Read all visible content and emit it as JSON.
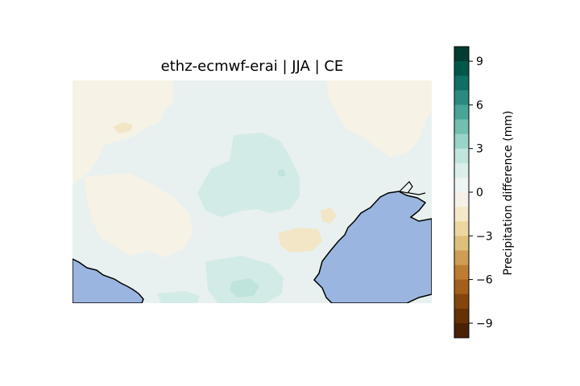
{
  "title": "ethz-ecmwf-erai | JJA | CE",
  "colorbar": {
    "label": "Precipitation difference (mm)",
    "min": -10,
    "max": 10,
    "levels": 20,
    "ticks": [
      9,
      6,
      3,
      0,
      -3,
      -6,
      -9
    ],
    "tick_labels": [
      "9",
      "6",
      "3",
      "0",
      "−3",
      "−6",
      "−9"
    ],
    "colormap": "BrBG",
    "colors_top_to_bottom": [
      "#003c30",
      "#01574a",
      "#0f6f64",
      "#2b8a80",
      "#4aa598",
      "#72bfb0",
      "#98d4c7",
      "#bfe5dc",
      "#dbeee9",
      "#eef4f3",
      "#f5f1e8",
      "#f4e8c8",
      "#ecd7a2",
      "#dfbf7c",
      "#cf9d55",
      "#bc7d32",
      "#a2601c",
      "#84460d",
      "#653105",
      "#4a2105"
    ]
  },
  "map": {
    "projection": "rotated pole (Central Europe domain)",
    "sea_color": "#9ab6e0",
    "coastline_color": "#000000",
    "field_colors": {
      "near_zero": "#e8f1f0",
      "slightly_dry": "#f6f2e6",
      "dry": "#f3e6c7",
      "slightly_wet": "#cfeae4",
      "wet": "#b5e2d8"
    }
  }
}
